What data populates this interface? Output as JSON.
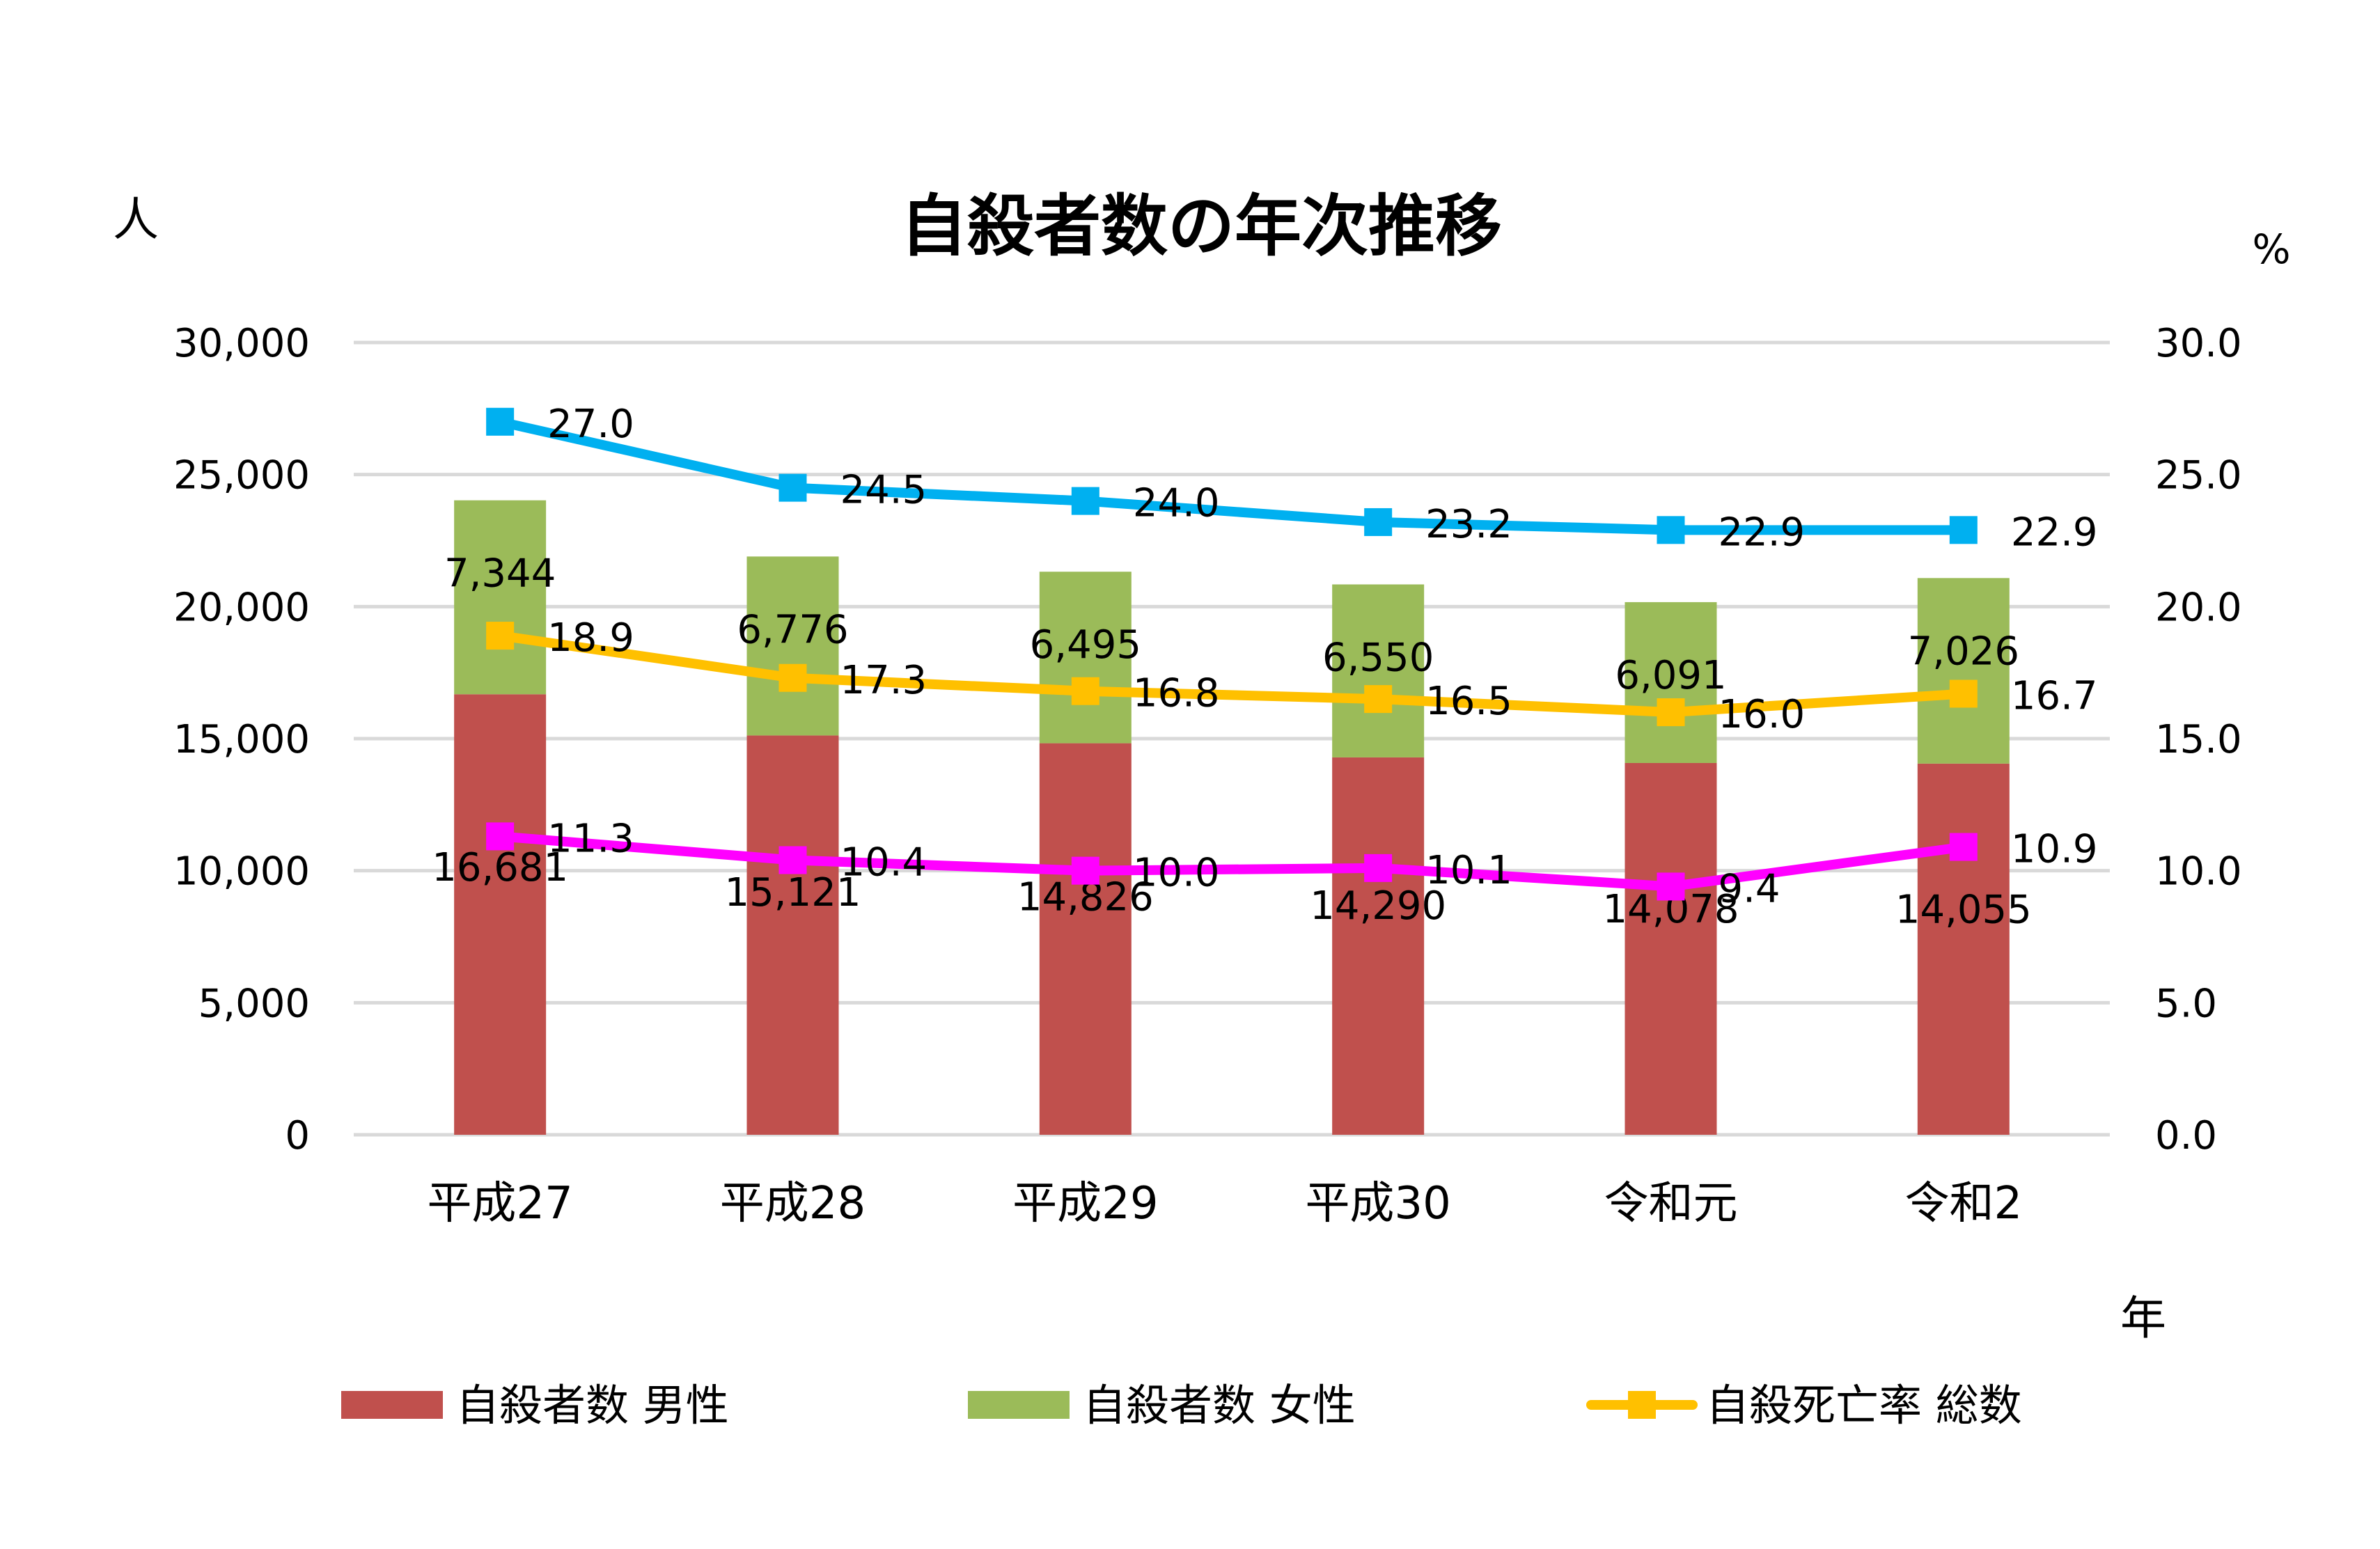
{
  "chart_data": {
    "type": "bar+line",
    "title": "自殺者数の年次推移",
    "y_left_unit": "人",
    "y_right_unit": "%",
    "x_unit": "年",
    "categories": [
      "平成27",
      "平成28",
      "平成29",
      "平成30",
      "令和元",
      "令和2"
    ],
    "y_left": {
      "min": 0,
      "max": 30000,
      "step": 5000,
      "ticks": [
        "0",
        "5,000",
        "10,000",
        "15,000",
        "20,000",
        "25,000",
        "30,000"
      ]
    },
    "y_right": {
      "min": 0,
      "max": 30,
      "step": 5,
      "ticks": [
        "0.0",
        "5.0",
        "10.0",
        "15.0",
        "20.0",
        "25.0",
        "30.0"
      ]
    },
    "grid": true,
    "legend_position": "bottom",
    "bar_series": [
      {
        "name": "自殺者数 男性",
        "color": "#C0504D",
        "values": [
          16681,
          15121,
          14826,
          14290,
          14078,
          14055
        ],
        "labels": [
          "16,681",
          "15,121",
          "14,826",
          "14,290",
          "14,078",
          "14,055"
        ]
      },
      {
        "name": "自殺者数 女性",
        "color": "#9BBB59",
        "values": [
          7344,
          6776,
          6495,
          6550,
          6091,
          7026
        ],
        "labels": [
          "7,344",
          "6,776",
          "6,495",
          "6,550",
          "6,091",
          "7,026"
        ]
      }
    ],
    "line_series": [
      {
        "name": "",
        "color": "#00B0F0",
        "values": [
          27.0,
          24.5,
          24.0,
          23.2,
          22.9,
          22.9
        ],
        "labels": [
          "27.0",
          "24.5",
          "24.0",
          "23.2",
          "22.9",
          "22.9"
        ]
      },
      {
        "name": "自殺死亡率 総数",
        "color": "#FFC000",
        "values": [
          18.9,
          17.3,
          16.8,
          16.5,
          16.0,
          16.7
        ],
        "labels": [
          "18.9",
          "17.3",
          "16.8",
          "16.5",
          "16.0",
          "16.7"
        ]
      },
      {
        "name": "",
        "color": "#FF00FF",
        "values": [
          11.3,
          10.4,
          10.0,
          10.1,
          9.4,
          10.9
        ],
        "labels": [
          "11.3",
          "10.4",
          "10.0",
          "10.1",
          "9.4",
          "10.9"
        ]
      }
    ],
    "legend": [
      "自殺者数 男性",
      "自殺者数 女性",
      "自殺死亡率 総数"
    ]
  }
}
